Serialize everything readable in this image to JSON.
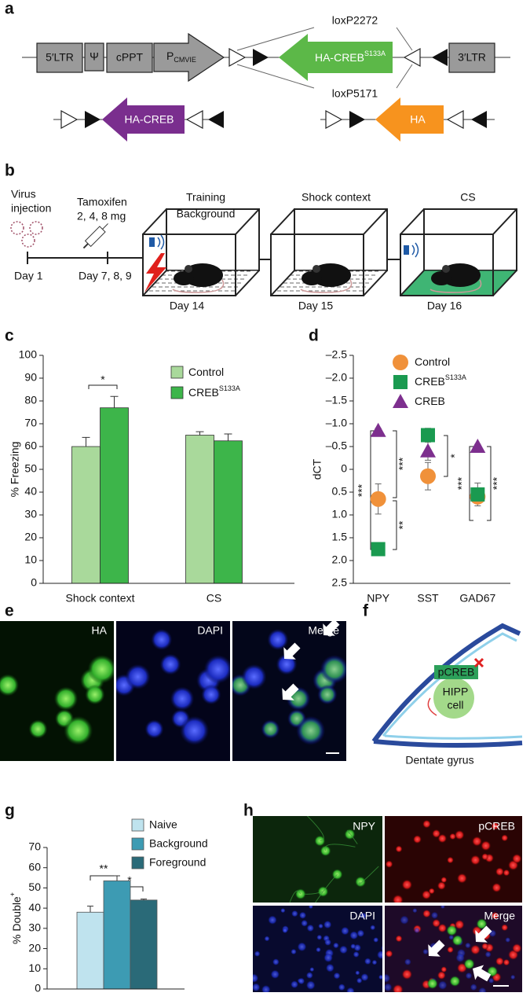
{
  "panel_labels": [
    "a",
    "b",
    "c",
    "d",
    "e",
    "f",
    "g",
    "h"
  ],
  "construct": {
    "ltr5": "5′LTR",
    "psi": "Ψ",
    "cppt": "cPPT",
    "promoter": "P",
    "promoter_sub": "CMVIE",
    "insert": "HA-CREB",
    "insert_sup": "S133A",
    "loxp_top": "loxP2272",
    "loxp_bottom": "loxP5171",
    "ltr3": "3′LTR",
    "variant_creb": "HA-CREB",
    "variant_ha": "HA"
  },
  "timeline": {
    "virus": [
      "Virus",
      "injection"
    ],
    "tamoxifen": "Tamoxifen",
    "dose": "2, 4, 8 mg",
    "day1": "Day 1",
    "day7": "Day 7, 8, 9",
    "contexts": [
      {
        "title": [
          "Training",
          "Background"
        ],
        "day": "Day 14"
      },
      {
        "title": [
          "Shock context"
        ],
        "day": "Day 15"
      },
      {
        "title": [
          "CS"
        ],
        "day": "Day 16"
      }
    ]
  },
  "chart_data": [
    {
      "type": "bar",
      "categories": [
        "Shock context",
        "CS"
      ],
      "ylabel": "% Freezing",
      "ylim": [
        0,
        100
      ],
      "yticks": [
        0,
        10,
        20,
        30,
        40,
        50,
        60,
        70,
        80,
        90,
        100
      ],
      "series": [
        {
          "name": "Control",
          "color": "#a9d99b",
          "values": [
            60,
            65
          ],
          "errors": [
            4,
            1.5
          ]
        },
        {
          "name": "CREB",
          "superscript": "S133A",
          "color": "#3db54a",
          "values": [
            77,
            62.5
          ],
          "errors": [
            5,
            3
          ]
        }
      ],
      "annotations": [
        "*"
      ]
    },
    {
      "type": "scatter",
      "categories": [
        "NPY",
        "SST",
        "GAD67"
      ],
      "ylabel": "dCT",
      "ylim": [
        2.5,
        -2.5
      ],
      "yticks": [
        {
          "value": -2.5,
          "label": "–2.5"
        },
        {
          "value": -2,
          "label": "–2.0"
        },
        {
          "value": -1.5,
          "label": "–1.5"
        },
        {
          "value": -1,
          "label": "–1.0"
        },
        {
          "value": -0.5,
          "label": "–0.5"
        },
        0,
        0.5,
        {
          "value": 1,
          "label": "1.0"
        },
        1.5,
        {
          "value": 2,
          "label": "2.0"
        },
        2.5
      ],
      "series": [
        {
          "name": "Control",
          "marker": "circle",
          "color": "#f0913a",
          "values": [
            0.65,
            0.15,
            0.6
          ],
          "errors": [
            0.33,
            0.3,
            0.15
          ]
        },
        {
          "name": "CREB",
          "superscript": "S133A",
          "marker": "square",
          "color": "#1a9a50",
          "values": [
            1.75,
            -0.75,
            0.55
          ],
          "errors": [
            0.1,
            0.15,
            0.25
          ]
        },
        {
          "name": "CREB",
          "marker": "triangle",
          "color": "#7d2f8e",
          "values": [
            -0.85,
            -0.4,
            -0.5
          ],
          "errors": [
            0.05,
            0.2,
            0.05
          ]
        }
      ],
      "annotations": [
        "***",
        "***",
        "**",
        "*",
        "***",
        "***"
      ]
    },
    {
      "type": "bar",
      "categories": [
        "Naive",
        "Background",
        "Foreground"
      ],
      "colors": [
        "#bfe3ee",
        "#3d9bb3",
        "#2a6a78"
      ],
      "values": [
        38,
        53.5,
        44
      ],
      "errors": [
        3,
        2.5,
        0.5
      ],
      "ylabel": "% Double",
      "ylabel_sup": "+",
      "ylim": [
        0,
        70
      ],
      "yticks": [
        0,
        10,
        20,
        30,
        40,
        50,
        60,
        70
      ],
      "annotations": [
        "**",
        "*"
      ]
    }
  ],
  "imaging_e": [
    "HA",
    "DAPI",
    "Merge"
  ],
  "diagram_f": {
    "marker": "pCREB",
    "cell": [
      "HIPP",
      "cell"
    ],
    "region": "Dentate gyrus"
  },
  "imaging_h": [
    "NPY",
    "pCREB",
    "DAPI",
    "Merge"
  ]
}
